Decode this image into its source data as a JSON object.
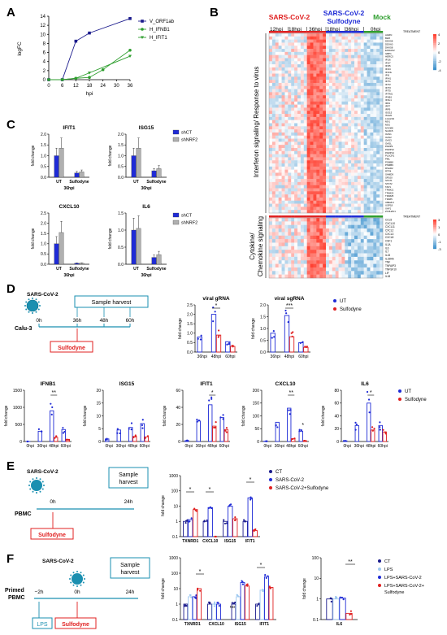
{
  "colors": {
    "blue": "#1f2bd6",
    "red": "#e02020",
    "green": "#2e9e2e",
    "gray": "#b0b0b0",
    "navy": "#1a1a8c",
    "teal": "#1a8fb0",
    "lightblue": "#9ec9f0",
    "salmon": "#f0a0a0",
    "pink": "#f060a0"
  },
  "panels": {
    "A": "A",
    "B": "B",
    "C": "C",
    "D": "D",
    "E": "E",
    "F": "F"
  },
  "A": {
    "ylabel": "logFC",
    "xlabel": "hpi",
    "yticks": [
      "0",
      "2",
      "4",
      "6",
      "8",
      "10",
      "12",
      "14"
    ],
    "xticks": [
      "0",
      "6",
      "12",
      "18",
      "24",
      "30",
      "36"
    ],
    "legend": [
      "V_ORF1ab",
      "H_IFNB1",
      "H_IFIT1"
    ]
  },
  "B": {
    "groups": [
      "SARS-CoV-2",
      "SARS-CoV-2 Sulfodyne",
      "Mock"
    ],
    "times": [
      "12hpi",
      "18hpi",
      "36hpi",
      "18hpi",
      "36hpi",
      "0hpi"
    ],
    "side1": "Interferon signaling/ Response to virus",
    "side2": "Cytokine/ Chemokine signaling",
    "treatment": "TREATMENT",
    "genes1": [
      "AGRN",
      "B2M",
      "DDX58",
      "DDX60",
      "DHX58",
      "EIF2AK2",
      "GBP1",
      "HERC5",
      "IFI16",
      "IFI27",
      "IFI35",
      "IFI44",
      "IFI44L",
      "IFI6",
      "IFIH1",
      "IFIT1",
      "IFIT2",
      "IFIT3",
      "IFIT5",
      "IFITM1",
      "IFNB1",
      "IFNL1",
      "IRF1",
      "IRF7",
      "IRF9",
      "ISG15",
      "ISG20",
      "LGALS9",
      "MX1",
      "MX2",
      "MYD88",
      "NLRC5",
      "OAS1",
      "OAS2",
      "OAS3",
      "OASL",
      "PARP9",
      "PARP12",
      "PARP14",
      "PLSCR1",
      "PML",
      "PSMB8",
      "PSMB9",
      "RSAD2",
      "RTP4",
      "SAMD9",
      "SP100",
      "STAT1",
      "STAT2",
      "TAP1",
      "TRIM21",
      "TRIM22",
      "TRIM25",
      "TRIM5",
      "UBE2L6",
      "USP18",
      "XAF1",
      "ZC3HAV1"
    ],
    "genes2": [
      "CCL5",
      "CXCL10",
      "CXCL11",
      "CXCL2",
      "CXCL3",
      "CXCL8",
      "CSF1",
      "IL1A",
      "IL6",
      "IL7",
      "IL15",
      "IL15RA",
      "TNF",
      "TNFAIP3",
      "TNFSF10",
      "LIF",
      "IL18"
    ],
    "scale1": [
      "4",
      "2",
      "0",
      "-2",
      "-4"
    ],
    "scale2": [
      "3",
      "1",
      "0",
      "-1",
      "-3"
    ]
  },
  "C": {
    "titles": [
      "IFIT1",
      "ISG15",
      "CXCL10",
      "IL6"
    ],
    "ylabel": "fold change",
    "categories": [
      "UT",
      "Sulfodyne"
    ],
    "xlabel": "36hpi",
    "legend": [
      "shCT",
      "shNRF2"
    ],
    "yticks": [
      [
        "0.0",
        "0.5",
        "1.0",
        "1.5",
        "2.0"
      ],
      [
        "0.0",
        "0.5",
        "1.0",
        "1.5",
        "2.0"
      ],
      [
        "0.0",
        "0.5",
        "1.0",
        "1.5",
        "2.0",
        "2.5"
      ],
      [
        "0.0",
        "0.5",
        "1.0",
        "1.5"
      ]
    ]
  },
  "D": {
    "virus": "SARS-CoV-2",
    "cell": "Calu-3",
    "harvest": "Sample harvest",
    "drug": "Sulfodyne",
    "times": [
      "0h",
      "36h",
      "48h",
      "60h"
    ],
    "top_titles": [
      "viral gRNA",
      "viral sgRNA"
    ],
    "bottom_titles": [
      "IFNB1",
      "ISG15",
      "IFIT1",
      "CXCL10",
      "IL6"
    ],
    "xcats": [
      "0hpi",
      "36hpi",
      "48hpi",
      "60hpi"
    ],
    "top_xcats": [
      "36hpi",
      "48hpi",
      "60hpi"
    ],
    "ylabel": "fold change",
    "legend": [
      "UT",
      "Sulfodyne"
    ],
    "sig_top": [
      "*",
      "***"
    ],
    "sig_bottom": [
      "**",
      "",
      "*",
      "**",
      "*"
    ],
    "extra_star": "*",
    "top_yticks": [
      [
        "0.0",
        "0.5",
        "1.0",
        "1.5",
        "2.0",
        "2.5"
      ],
      [
        "0.0",
        "0.5",
        "1.0",
        "1.5",
        "2.0"
      ]
    ],
    "bottom_yticks": [
      [
        "0",
        "500",
        "1000",
        "1500"
      ],
      [
        "0",
        "5",
        "10",
        "15",
        "20"
      ],
      [
        "0",
        "20",
        "40",
        "60"
      ],
      [
        "0",
        "50",
        "100",
        "150",
        "200"
      ],
      [
        "0",
        "20",
        "40",
        "60",
        "80"
      ]
    ]
  },
  "E": {
    "virus": "SARS-CoV-2",
    "cell": "PBMC",
    "harvest": "Sample harvest",
    "drug": "Sulfodyne",
    "times": [
      "0h",
      "24h"
    ],
    "ylabel": "fold change",
    "categories": [
      "TXNRD1",
      "CXCL10",
      "ISG15",
      "IFIT1"
    ],
    "yticks": [
      "0.1",
      "1",
      "10",
      "100",
      "1000"
    ],
    "legend": [
      "CT",
      "SARS-CoV-2",
      "SARS-CoV-2+Sulfodyne"
    ],
    "sig": [
      "*",
      "*",
      "*"
    ]
  },
  "F": {
    "virus": "SARS-CoV-2",
    "cell": "Primed PBMC",
    "harvest": "Sample harvest",
    "lps": "LPS",
    "drug": "Sulfodyne",
    "times": [
      "−2h",
      "0h",
      "24h"
    ],
    "ylabel": "fold change",
    "categories": [
      "TXNRD1",
      "CXCL10",
      "ISG15",
      "IFIT1"
    ],
    "nd": "ND",
    "yticks": [
      "0.1",
      "1",
      "10",
      "100",
      "1000"
    ],
    "il6_label": "IL6",
    "il6_yticks": [
      "0.1",
      "1",
      "10",
      "100"
    ],
    "legend": [
      "CT",
      "LPS",
      "LPS+SARS-CoV-2",
      "LPS+SARS-CoV-2+ Sulfodyne"
    ],
    "sig": [
      "*",
      "*",
      "**"
    ]
  },
  "chart_data": [
    {
      "type": "line",
      "panel": "A",
      "x": [
        0,
        6,
        12,
        18,
        24,
        36
      ],
      "series": [
        {
          "name": "V_ORF1ab",
          "values": [
            0,
            0,
            8.5,
            10.3,
            null,
            13.5
          ]
        },
        {
          "name": "H_IFNB1",
          "values": [
            0,
            0,
            0.3,
            0.5,
            2.2,
            6.5
          ]
        },
        {
          "name": "H_IFIT1",
          "values": [
            0,
            0,
            0.3,
            1.5,
            null,
            5.2
          ]
        }
      ],
      "xlabel": "hpi",
      "ylabel": "logFC",
      "ylim": [
        0,
        14
      ]
    },
    {
      "type": "bar",
      "panel": "C",
      "title": "IFIT1",
      "categories": [
        "UT",
        "Sulfodyne"
      ],
      "series": [
        {
          "name": "shCT",
          "values": [
            1.0,
            0.2
          ]
        },
        {
          "name": "shNRF2",
          "values": [
            1.35,
            0.25
          ]
        }
      ],
      "ylabel": "fold change",
      "ylim": [
        0,
        2
      ]
    },
    {
      "type": "bar",
      "panel": "C",
      "title": "ISG15",
      "categories": [
        "UT",
        "Sulfodyne"
      ],
      "series": [
        {
          "name": "shCT",
          "values": [
            1.0,
            0.3
          ]
        },
        {
          "name": "shNRF2",
          "values": [
            1.35,
            0.4
          ]
        }
      ],
      "ylabel": "fold change",
      "ylim": [
        0,
        2
      ]
    },
    {
      "type": "bar",
      "panel": "C",
      "title": "CXCL10",
      "categories": [
        "UT",
        "Sulfodyne"
      ],
      "series": [
        {
          "name": "shCT",
          "values": [
            1.0,
            0.05
          ]
        },
        {
          "name": "shNRF2",
          "values": [
            1.55,
            0.05
          ]
        }
      ],
      "ylabel": "fold change",
      "ylim": [
        0,
        2.5
      ]
    },
    {
      "type": "bar",
      "panel": "C",
      "title": "IL6",
      "categories": [
        "UT",
        "Sulfodyne"
      ],
      "series": [
        {
          "name": "shCT",
          "values": [
            1.0,
            0.2
          ]
        },
        {
          "name": "shNRF2",
          "values": [
            1.05,
            0.28
          ]
        }
      ],
      "ylabel": "fold change",
      "ylim": [
        0,
        1.5
      ]
    },
    {
      "type": "bar",
      "panel": "D",
      "title": "viral gRNA",
      "categories": [
        "36hpi",
        "48hpi",
        "60hpi"
      ],
      "series": [
        {
          "name": "UT",
          "values": [
            0.8,
            2.0,
            0.55
          ]
        },
        {
          "name": "Sulfodyne",
          "values": [
            null,
            0.9,
            0.3
          ]
        }
      ],
      "ylabel": "fold change",
      "ylim": [
        0,
        2.5
      ]
    },
    {
      "type": "bar",
      "panel": "D",
      "title": "viral sgRNA",
      "categories": [
        "36hpi",
        "48hpi",
        "60hpi"
      ],
      "series": [
        {
          "name": "UT",
          "values": [
            0.8,
            1.55,
            0.4
          ]
        },
        {
          "name": "Sulfodyne",
          "values": [
            null,
            0.65,
            0.2
          ]
        }
      ],
      "ylabel": "fold change",
      "ylim": [
        0,
        2
      ]
    },
    {
      "type": "bar",
      "panel": "D",
      "title": "IFNB1",
      "categories": [
        "0hpi",
        "36hpi",
        "48hpi",
        "60hpi"
      ],
      "series": [
        {
          "name": "UT",
          "values": [
            1,
            300,
            900,
            350
          ]
        },
        {
          "name": "Sulfodyne",
          "values": [
            null,
            null,
            120,
            60
          ]
        }
      ],
      "ylabel": "fold change",
      "ylim": [
        0,
        1500
      ]
    },
    {
      "type": "bar",
      "panel": "D",
      "title": "ISG15",
      "categories": [
        "0hpi",
        "36hpi",
        "48hpi",
        "60hpi"
      ],
      "series": [
        {
          "name": "UT",
          "values": [
            1,
            4.5,
            5.5,
            7
          ]
        },
        {
          "name": "Sulfodyne",
          "values": [
            null,
            null,
            2,
            1.8
          ]
        }
      ],
      "ylabel": "fold change",
      "ylim": [
        0,
        20
      ]
    },
    {
      "type": "bar",
      "panel": "D",
      "title": "IFIT1",
      "categories": [
        "0hpi",
        "36hpi",
        "48hpi",
        "60hpi"
      ],
      "series": [
        {
          "name": "UT",
          "values": [
            1,
            24,
            43,
            28
          ]
        },
        {
          "name": "Sulfodyne",
          "values": [
            null,
            null,
            18,
            14
          ]
        }
      ],
      "ylabel": "fold change",
      "ylim": [
        0,
        60
      ]
    },
    {
      "type": "bar",
      "panel": "D",
      "title": "CXCL10",
      "categories": [
        "0hpi",
        "36hpi",
        "48hpi",
        "60hpi"
      ],
      "series": [
        {
          "name": "UT",
          "values": [
            1,
            75,
            130,
            40
          ]
        },
        {
          "name": "Sulfodyne",
          "values": [
            null,
            null,
            10,
            3
          ]
        }
      ],
      "ylabel": "fold change",
      "ylim": [
        0,
        200
      ]
    },
    {
      "type": "bar",
      "panel": "D",
      "title": "IL6",
      "categories": [
        "0hpi",
        "36hpi",
        "48hpi",
        "60hpi"
      ],
      "series": [
        {
          "name": "UT",
          "values": [
            1,
            25,
            60,
            25
          ]
        },
        {
          "name": "Sulfodyne",
          "values": [
            null,
            null,
            18,
            15
          ]
        }
      ],
      "ylabel": "fold change",
      "ylim": [
        0,
        80
      ]
    },
    {
      "type": "bar",
      "panel": "E",
      "scale": "log",
      "categories": [
        "TXNRD1",
        "CXCL10",
        "ISG15",
        "IFIT1"
      ],
      "series": [
        {
          "name": "CT",
          "values": [
            1,
            1,
            1,
            1
          ]
        },
        {
          "name": "SARS-CoV-2",
          "values": [
            1.3,
            8,
            10,
            35
          ]
        },
        {
          "name": "SARS-CoV-2+Sulfodyne",
          "values": [
            6,
            0.07,
            1.5,
            0.25
          ]
        }
      ],
      "ylabel": "fold change",
      "ylim": [
        0.1,
        1000
      ]
    },
    {
      "type": "bar",
      "panel": "F",
      "scale": "log",
      "categories": [
        "TXNRD1",
        "CXCL10",
        "ISG15",
        "IFIT1"
      ],
      "series": [
        {
          "name": "CT",
          "values": [
            1,
            1,
            1,
            1
          ]
        },
        {
          "name": "LPS",
          "values": [
            3,
            1,
            3,
            8
          ]
        },
        {
          "name": "LPS+SARS-CoV-2",
          "values": [
            3,
            1,
            25,
            60
          ]
        },
        {
          "name": "LPS+SARS-CoV-2+ Sulfodyne",
          "values": [
            10,
            null,
            15,
            12
          ]
        }
      ],
      "ylabel": "fold change",
      "ylim": [
        0.1,
        1000
      ]
    },
    {
      "type": "bar",
      "panel": "F",
      "title": "IL6",
      "scale": "log",
      "categories": [
        "IL6"
      ],
      "series": [
        {
          "name": "CT",
          "values": [
            1
          ]
        },
        {
          "name": "LPS",
          "values": [
            1
          ]
        },
        {
          "name": "LPS+SARS-CoV-2",
          "values": [
            1.1
          ]
        },
        {
          "name": "LPS+SARS-CoV-2+ Sulfodyne",
          "values": [
            0.2
          ]
        }
      ],
      "ylabel": "fold change",
      "ylim": [
        0.1,
        100
      ]
    }
  ]
}
